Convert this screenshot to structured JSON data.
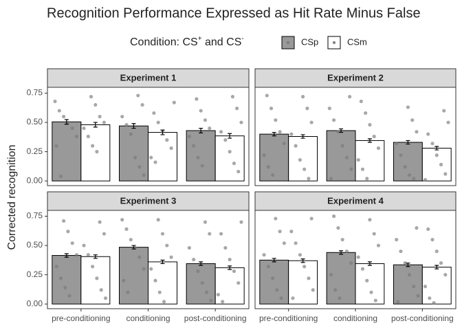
{
  "chart_data": {
    "type": "bar",
    "title": "Recognition Performance Expressed as Hit Rate Minus False",
    "legend_title": [
      "Condition:  CS",
      "+",
      "  and  CS",
      "-"
    ],
    "ylabel": "Corrected recognition",
    "categories": [
      "pre-conditioning",
      "conditioning",
      "post-conditioning"
    ],
    "series": [
      {
        "name": "CSp",
        "color": "#999999"
      },
      {
        "name": "CSm",
        "color": "#ffffff"
      }
    ],
    "points_color": "#7a7a7a",
    "ylim": [
      -0.04,
      0.8
    ],
    "yticks": [
      {
        "value": 0,
        "label": "0.00"
      },
      {
        "value": 0.25,
        "label": "0.25"
      },
      {
        "value": 0.5,
        "label": "0.50"
      },
      {
        "value": 0.75,
        "label": "0.75"
      }
    ],
    "panels": [
      {
        "title": "Experiment 1",
        "series": [
          {
            "values": [
              0.505,
              0.47,
              0.43
            ],
            "errors": [
              0.02,
              0.02,
              0.02
            ],
            "points": [
              [
                0.68,
                0.6,
                0.55,
                0.5,
                0.45,
                0.38,
                0.3,
                0.04
              ],
              [
                0.73,
                0.65,
                0.55,
                0.48,
                0.4,
                0.2,
                0.12,
                0.05
              ],
              [
                0.7,
                0.6,
                0.52,
                0.45,
                0.38,
                0.3,
                0.2,
                0.13
              ]
            ]
          },
          {
            "values": [
              0.48,
              0.415,
              0.385
            ],
            "errors": [
              0.02,
              0.02,
              0.02
            ],
            "points": [
              [
                0.72,
                0.65,
                0.55,
                0.5,
                0.45,
                0.38,
                0.3,
                0.25
              ],
              [
                0.67,
                0.58,
                0.5,
                0.42,
                0.35,
                0.28,
                0.2,
                0.16
              ],
              [
                0.72,
                0.62,
                0.5,
                0.42,
                0.35,
                0.25,
                0.15,
                0.08
              ]
            ]
          }
        ]
      },
      {
        "title": "Experiment 2",
        "series": [
          {
            "values": [
              0.4,
              0.43,
              0.33
            ],
            "errors": [
              0.015,
              0.015,
              0.015
            ],
            "points": [
              [
                0.73,
                0.62,
                0.52,
                0.42,
                0.32,
                0.22,
                0.12,
                0.05
              ],
              [
                0.72,
                0.62,
                0.52,
                0.42,
                0.3,
                0.2,
                0.1,
                0.02
              ],
              [
                0.63,
                0.52,
                0.42,
                0.32,
                0.22,
                0.12,
                0.05,
                0.02
              ]
            ]
          },
          {
            "values": [
              0.38,
              0.345,
              0.28
            ],
            "errors": [
              0.015,
              0.015,
              0.015
            ],
            "points": [
              [
                0.72,
                0.62,
                0.5,
                0.4,
                0.3,
                0.18,
                0.1,
                0.02
              ],
              [
                0.68,
                0.58,
                0.48,
                0.38,
                0.28,
                0.18,
                0.1,
                0.02
              ],
              [
                0.6,
                0.5,
                0.4,
                0.32,
                0.22,
                0.14,
                0.06,
                0.01
              ]
            ]
          }
        ]
      },
      {
        "title": "Experiment 3",
        "series": [
          {
            "values": [
              0.415,
              0.485,
              0.345
            ],
            "errors": [
              0.015,
              0.015,
              0.015
            ],
            "points": [
              [
                0.71,
                0.62,
                0.52,
                0.42,
                0.32,
                0.22,
                0.14,
                0.07
              ],
              [
                0.72,
                0.64,
                0.55,
                0.48,
                0.4,
                0.3,
                0.2,
                0.1
              ],
              [
                0.7,
                0.6,
                0.48,
                0.38,
                0.28,
                0.18,
                0.1,
                0.03
              ]
            ]
          },
          {
            "values": [
              0.405,
              0.36,
              0.31
            ],
            "errors": [
              0.015,
              0.015,
              0.015
            ],
            "points": [
              [
                0.7,
                0.6,
                0.5,
                0.42,
                0.32,
                0.22,
                0.12,
                0.05
              ],
              [
                0.72,
                0.6,
                0.5,
                0.4,
                0.3,
                0.2,
                0.1,
                0.02
              ],
              [
                0.7,
                0.6,
                0.48,
                0.38,
                0.28,
                0.18,
                0.08,
                0.02
              ]
            ]
          }
        ]
      },
      {
        "title": "Experiment 4",
        "series": [
          {
            "values": [
              0.375,
              0.44,
              0.335
            ],
            "errors": [
              0.015,
              0.015,
              0.015
            ],
            "points": [
              [
                0.73,
                0.62,
                0.52,
                0.42,
                0.32,
                0.22,
                0.12,
                0.05
              ],
              [
                0.75,
                0.65,
                0.55,
                0.45,
                0.35,
                0.25,
                0.12,
                0.05
              ],
              [
                0.65,
                0.55,
                0.45,
                0.35,
                0.25,
                0.15,
                0.07,
                0.02
              ]
            ]
          },
          {
            "values": [
              0.37,
              0.345,
              0.315
            ],
            "errors": [
              0.015,
              0.015,
              0.015
            ],
            "points": [
              [
                0.73,
                0.62,
                0.52,
                0.42,
                0.32,
                0.22,
                0.12,
                0.05
              ],
              [
                0.72,
                0.6,
                0.5,
                0.4,
                0.3,
                0.2,
                0.1,
                0.03
              ],
              [
                0.64,
                0.55,
                0.45,
                0.35,
                0.25,
                0.15,
                0.05,
                0.01
              ]
            ]
          }
        ]
      }
    ]
  }
}
